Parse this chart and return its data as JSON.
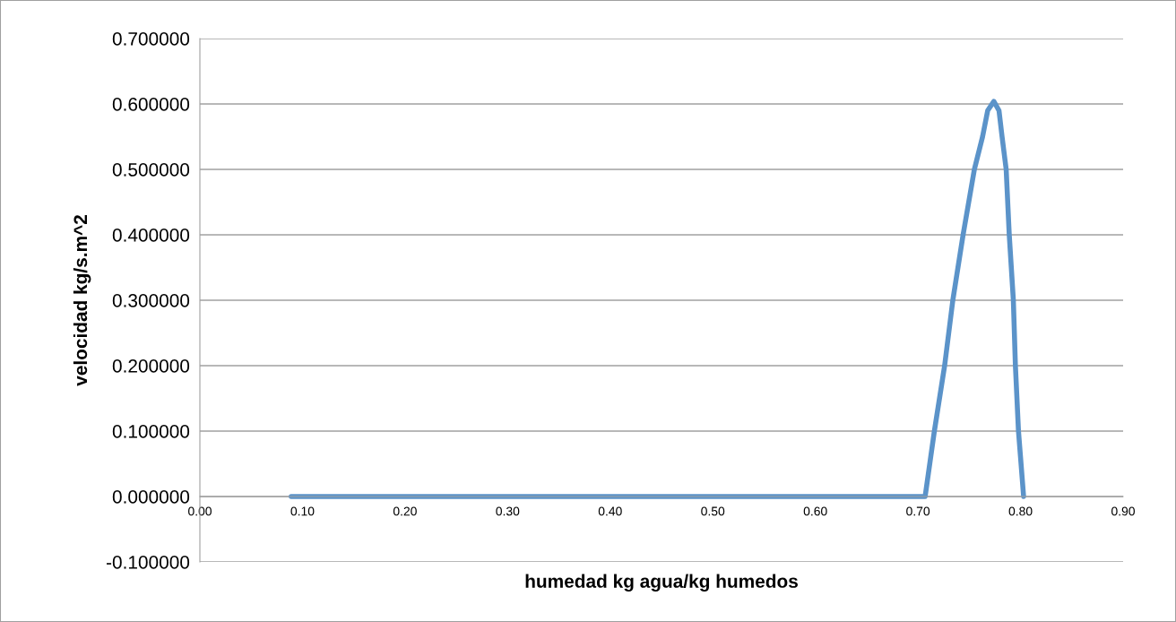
{
  "chart_data": {
    "type": "line",
    "xlabel": "humedad kg agua/kg humedos",
    "ylabel": "velocidad kg/s.m^2",
    "series": [
      {
        "color": "#5b93c9",
        "x": [
          0.089,
          0.707,
          0.716,
          0.726,
          0.734,
          0.744,
          0.755,
          0.763,
          0.768,
          0.774,
          0.779,
          0.782,
          0.786,
          0.789,
          0.793,
          0.795,
          0.798,
          0.803
        ],
        "values": [
          0,
          0,
          0.1,
          0.2,
          0.3,
          0.4,
          0.5,
          0.55,
          0.59,
          0.604,
          0.59,
          0.55,
          0.5,
          0.4,
          0.3,
          0.2,
          0.1,
          0
        ]
      }
    ],
    "xlim": [
      0,
      0.9
    ],
    "ylim": [
      -0.1,
      0.7
    ],
    "xticks": [
      {
        "value": 0,
        "label": "0.00"
      },
      {
        "value": 0.1,
        "label": "0.10"
      },
      {
        "value": 0.2,
        "label": "0.20"
      },
      {
        "value": 0.3,
        "label": "0.30"
      },
      {
        "value": 0.4,
        "label": "0.40"
      },
      {
        "value": 0.5,
        "label": "0.50"
      },
      {
        "value": 0.6,
        "label": "0.60"
      },
      {
        "value": 0.7,
        "label": "0.70"
      },
      {
        "value": 0.8,
        "label": "0.80"
      },
      {
        "value": 0.9,
        "label": "0.90"
      }
    ],
    "yticks": [
      {
        "value": -0.1,
        "label": "-0.100000"
      },
      {
        "value": 0,
        "label": "0.000000"
      },
      {
        "value": 0.1,
        "label": "0.100000"
      },
      {
        "value": 0.2,
        "label": "0.200000"
      },
      {
        "value": 0.3,
        "label": "0.300000"
      },
      {
        "value": 0.4,
        "label": "0.400000"
      },
      {
        "value": 0.5,
        "label": "0.500000"
      },
      {
        "value": 0.6,
        "label": "0.600000"
      },
      {
        "value": 0.7,
        "label": "0.700000"
      }
    ],
    "grid": "y",
    "marker": "none",
    "line_style": "solid"
  }
}
